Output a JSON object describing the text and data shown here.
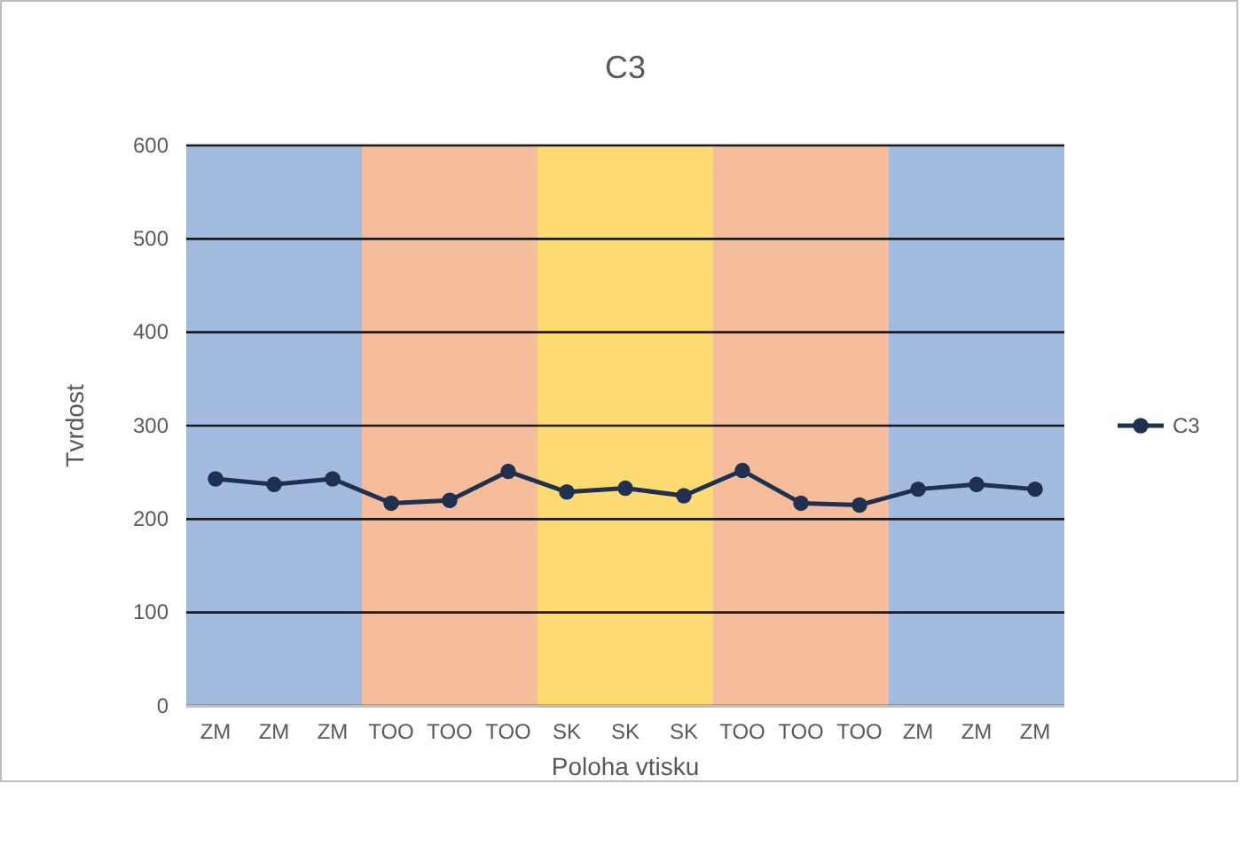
{
  "chart_data": {
    "type": "line",
    "title": "C3",
    "xlabel": "Poloha vtisku",
    "ylabel": "Tvrdost",
    "categories": [
      "ZM",
      "ZM",
      "ZM",
      "TOO",
      "TOO",
      "TOO",
      "SK",
      "SK",
      "SK",
      "TOO",
      "TOO",
      "TOO",
      "ZM",
      "ZM",
      "ZM"
    ],
    "ylim": [
      0,
      600
    ],
    "yticks": [
      0,
      100,
      200,
      300,
      400,
      500,
      600
    ],
    "grid": "y",
    "series": [
      {
        "name": "C3",
        "color": "#1f3050",
        "values": [
          243,
          237,
          243,
          217,
          220,
          251,
          229,
          233,
          225,
          252,
          217,
          215,
          232,
          237,
          232
        ]
      }
    ],
    "marker": "circle",
    "line_style": "solid",
    "legend": "right"
  }
}
